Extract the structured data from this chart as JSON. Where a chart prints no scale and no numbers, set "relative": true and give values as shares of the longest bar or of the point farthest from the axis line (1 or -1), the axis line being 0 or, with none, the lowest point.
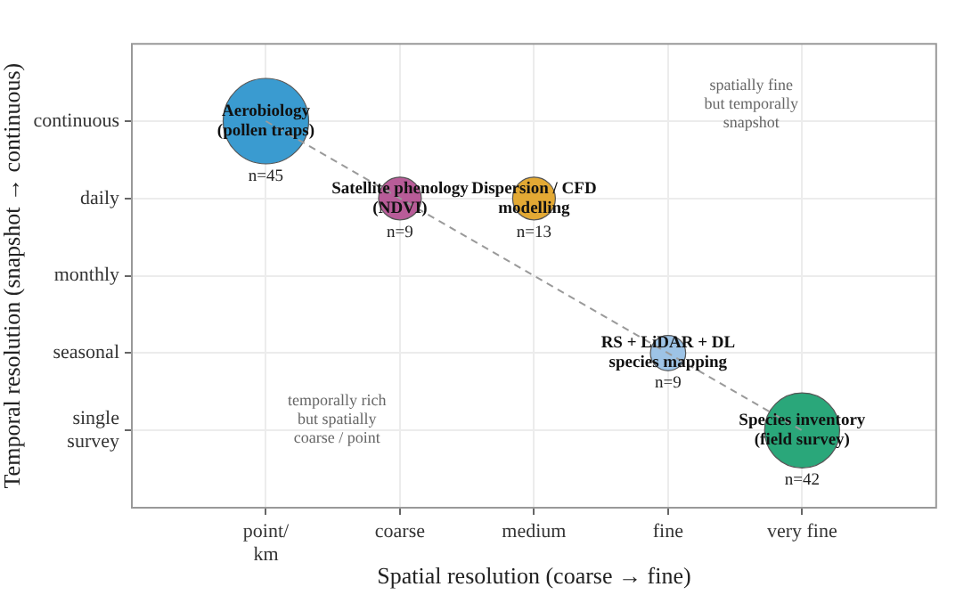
{
  "chart_data": {
    "type": "bubble",
    "relative": true,
    "xlabel": "Spatial resolution (coarse → fine)",
    "ylabel": "Temporal resolution (snapshot → continuous)",
    "categories": [
      "point/\nkm",
      "coarse",
      "medium",
      "fine",
      "very fine"
    ],
    "y_categories": [
      "continuous",
      "daily",
      "monthly",
      "seasonal",
      "single\nsurvey"
    ],
    "grid": true,
    "legend": false,
    "series": [
      {
        "name": "Aerobiology\n(pollen traps)",
        "color": "#3a9bd0",
        "values": [
          1,
          null,
          null,
          null,
          null
        ],
        "sizes": [
          1,
          null,
          null,
          null,
          null
        ]
      },
      {
        "name": "Satellite phenology\n(NDVI)",
        "color": "#b85c98",
        "values": [
          null,
          0.8,
          null,
          null,
          null
        ],
        "sizes": [
          null,
          0.25,
          null,
          null,
          null
        ]
      },
      {
        "name": "Dispersion / CFD\nmodelling",
        "color": "#e3a934",
        "values": [
          null,
          null,
          0.8,
          null,
          null
        ],
        "sizes": [
          null,
          null,
          0.25,
          null,
          null
        ]
      },
      {
        "name": "RS + LiDAR + DL\nspecies mapping",
        "color": "#9dc3e6",
        "values": [
          null,
          null,
          null,
          0.4,
          null
        ],
        "sizes": [
          null,
          null,
          null,
          0.17,
          null
        ]
      },
      {
        "name": "Species inventory\n(field survey)",
        "color": "#2aa77a",
        "values": [
          null,
          null,
          null,
          null,
          0.2
        ],
        "sizes": [
          null,
          null,
          null,
          null,
          0.77
        ]
      },
      {
        "type": "line",
        "color": "#9a9a9a",
        "line_style": "dashed",
        "marker": "none",
        "values": [
          1,
          null,
          null,
          null,
          0.2
        ]
      }
    ],
    "annotations": [
      "spatially fine\nbut temporally\nsnapshot",
      "temporally rich\nbut spatially\ncoarse / point",
      {
        "text": "n=45",
        "x": "point/\nkm",
        "y": 1
      },
      {
        "text": "n=9",
        "x": "coarse",
        "y": 0.8
      },
      {
        "text": "n=13",
        "x": "medium",
        "y": 0.8
      },
      {
        "text": "n=9",
        "x": "fine",
        "y": 0.4
      },
      {
        "text": "n=42",
        "x": "very fine",
        "y": 0.2
      }
    ]
  }
}
